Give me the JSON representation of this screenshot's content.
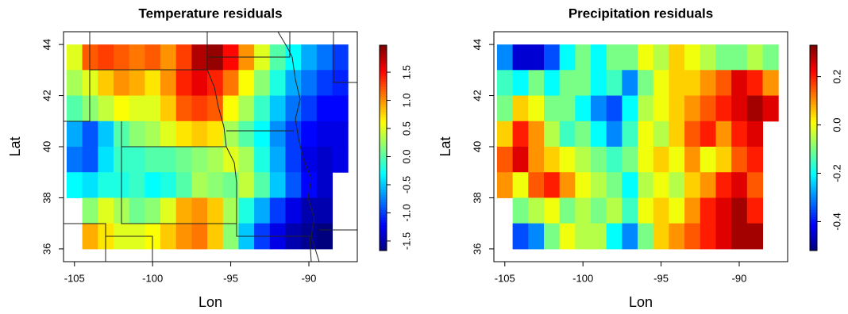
{
  "chart_data": [
    {
      "type": "heatmap",
      "title": "Temperature residuals",
      "xlabel": "Lon",
      "ylabel": "Lat",
      "x": [
        -105,
        -104,
        -103,
        -102,
        -101,
        -100,
        -99,
        -98,
        -97,
        -96,
        -95,
        -94,
        -93,
        -92,
        -91,
        -90,
        -89,
        -88
      ],
      "y": [
        43.5,
        42.5,
        41.5,
        40.5,
        39.5,
        38.5,
        37.5,
        36.5
      ],
      "z": [
        [
          0.5,
          1.2,
          1.3,
          1.2,
          1.1,
          1.2,
          1.0,
          1.3,
          1.8,
          1.9,
          1.5,
          1.0,
          0.5,
          0.0,
          -0.3,
          -0.6,
          -0.8,
          -1.0
        ],
        [
          0.3,
          0.5,
          0.8,
          1.0,
          0.9,
          0.7,
          1.0,
          1.4,
          1.6,
          1.4,
          1.1,
          0.6,
          0.2,
          -0.2,
          -0.6,
          -0.8,
          -1.0,
          -1.1
        ],
        [
          0.0,
          0.2,
          0.4,
          0.6,
          0.5,
          0.5,
          0.8,
          1.2,
          1.3,
          1.2,
          0.6,
          0.3,
          -0.1,
          -0.5,
          -0.8,
          -1.0,
          -1.2,
          -1.2
        ],
        [
          -0.6,
          -0.9,
          -0.5,
          0.0,
          0.2,
          0.3,
          0.5,
          0.7,
          0.8,
          0.7,
          0.3,
          0.0,
          -0.3,
          -0.7,
          -1.0,
          -1.2,
          -1.3,
          -1.3
        ],
        [
          -0.8,
          -0.9,
          -0.4,
          -0.1,
          -0.1,
          0.0,
          0.0,
          0.1,
          0.2,
          0.3,
          0.5,
          0.3,
          -0.2,
          -0.6,
          -1.0,
          -1.3,
          -1.4,
          -1.3
        ],
        [
          -0.3,
          -0.4,
          -0.2,
          -0.2,
          -0.1,
          -0.3,
          -0.2,
          0.0,
          0.3,
          0.2,
          0.1,
          0.4,
          0.0,
          -0.5,
          -0.9,
          -1.2,
          -1.4,
          null
        ],
        [
          null,
          0.2,
          0.5,
          0.3,
          0.1,
          0.2,
          0.5,
          0.9,
          1.0,
          0.8,
          0.3,
          -0.2,
          -0.6,
          -1.0,
          -1.3,
          -1.5,
          -1.5,
          null
        ],
        [
          null,
          0.9,
          0.7,
          0.5,
          0.5,
          0.6,
          0.8,
          1.0,
          1.1,
          0.8,
          0.2,
          -0.5,
          -1.0,
          -1.3,
          -1.5,
          -1.6,
          -1.7,
          null
        ]
      ],
      "xlim": [
        -105.7,
        -86.9
      ],
      "ylim": [
        35.5,
        44.5
      ],
      "xticks": [
        -105,
        -100,
        -95,
        -90
      ],
      "yticks": [
        36,
        38,
        40,
        42,
        44
      ],
      "zlim": [
        -1.67,
        1.98
      ],
      "zticks": [
        -1.5,
        {
          "value": -1.0,
          "label": "-1.0"
        },
        -0.5,
        {
          "value": 0.0,
          "label": "0.0"
        },
        0.5,
        {
          "value": 1.0,
          "label": "1.0"
        },
        1.5
      ],
      "colors": [
        "#00007f",
        "#0000ff",
        "#007fff",
        "#00ffff",
        "#7fff7f",
        "#ffff00",
        "#ff7f00",
        "#ff0000",
        "#7f0000"
      ]
    },
    {
      "type": "heatmap",
      "title": "Precipitation residuals",
      "xlabel": "Lon",
      "ylabel": "Lat",
      "x": [
        -105,
        -104,
        -103,
        -102,
        -101,
        -100,
        -99,
        -98,
        -97,
        -96,
        -95,
        -94,
        -93,
        -92,
        -91,
        -90,
        -89,
        -88
      ],
      "y": [
        43.5,
        42.5,
        41.5,
        40.5,
        39.5,
        38.5,
        37.5,
        36.5
      ],
      "z": [
        [
          -0.3,
          -0.45,
          -0.45,
          -0.35,
          -0.2,
          -0.1,
          -0.2,
          -0.1,
          -0.1,
          0.0,
          -0.05,
          0.05,
          0.0,
          -0.05,
          -0.1,
          -0.1,
          -0.05,
          -0.1
        ],
        [
          -0.15,
          -0.2,
          -0.1,
          -0.2,
          -0.1,
          -0.1,
          -0.2,
          -0.15,
          -0.3,
          -0.1,
          0.0,
          0.05,
          0.05,
          0.1,
          0.15,
          0.25,
          0.2,
          0.1
        ],
        [
          -0.1,
          0.05,
          0.0,
          -0.1,
          -0.1,
          -0.2,
          -0.3,
          -0.35,
          -0.2,
          -0.05,
          0.0,
          0.05,
          0.1,
          0.15,
          0.2,
          0.25,
          0.3,
          0.25
        ],
        [
          0.05,
          0.2,
          0.1,
          -0.05,
          -0.15,
          -0.1,
          -0.2,
          -0.3,
          -0.15,
          0.0,
          -0.05,
          0.05,
          0.15,
          0.2,
          0.1,
          0.2,
          0.25,
          null
        ],
        [
          0.15,
          0.25,
          0.1,
          0.05,
          0.0,
          -0.05,
          -0.1,
          -0.15,
          -0.1,
          0.0,
          0.05,
          0.0,
          0.1,
          0.0,
          0.05,
          0.15,
          0.2,
          null
        ],
        [
          0.1,
          0.0,
          0.15,
          0.2,
          0.1,
          0.0,
          -0.05,
          -0.1,
          -0.2,
          -0.05,
          0.0,
          -0.05,
          0.05,
          0.1,
          0.2,
          0.25,
          0.15,
          null
        ],
        [
          null,
          -0.1,
          -0.05,
          0.0,
          -0.1,
          -0.05,
          -0.1,
          -0.05,
          -0.15,
          0.0,
          0.05,
          0.0,
          0.1,
          0.2,
          0.25,
          0.3,
          0.2,
          null
        ],
        [
          null,
          -0.35,
          -0.3,
          -0.1,
          0.0,
          -0.05,
          -0.05,
          -0.2,
          -0.3,
          -0.1,
          0.05,
          0.1,
          0.15,
          0.2,
          0.25,
          0.3,
          0.3,
          null
        ]
      ],
      "xlim": [
        -105.7,
        -86.9
      ],
      "ylim": [
        35.5,
        44.5
      ],
      "xticks": [
        -105,
        -100,
        -95,
        -90
      ],
      "yticks": [
        36,
        38,
        40,
        42,
        44
      ],
      "zlim": [
        -0.52,
        0.33
      ],
      "zticks": [
        0.2,
        {
          "value": 0.0,
          "label": "0.0"
        },
        -0.2,
        -0.4
      ],
      "colors": [
        "#00007f",
        "#0000ff",
        "#007fff",
        "#00ffff",
        "#7fff7f",
        "#ffff00",
        "#ff7f00",
        "#ff0000",
        "#7f0000"
      ]
    }
  ]
}
